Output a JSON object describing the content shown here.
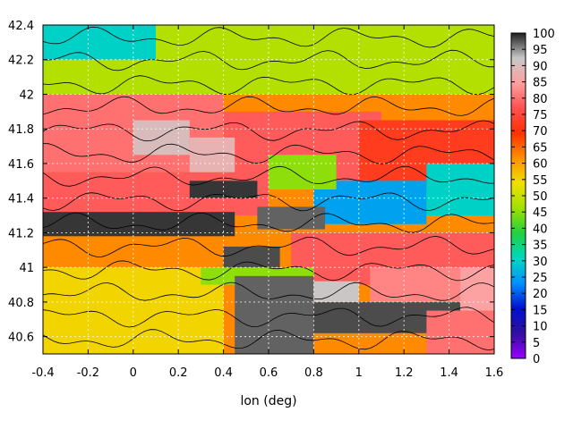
{
  "chart_data": {
    "type": "heatmap",
    "title": "",
    "xlabel": "lon (deg)",
    "ylabel": "",
    "xlim": [
      -0.4,
      1.6
    ],
    "ylim": [
      40.5,
      42.4
    ],
    "x_ticks": [
      "-0.4",
      "-0.2",
      "0",
      "0.2",
      "0.4",
      "0.6",
      "0.8",
      "1",
      "1.2",
      "1.4",
      "1.6"
    ],
    "y_ticks": [
      "40.6",
      "40.8",
      "41",
      "41.2",
      "41.4",
      "41.6",
      "41.8",
      "42",
      "42.2",
      "42.4"
    ],
    "grid": true,
    "contours": true,
    "colorbar": {
      "range": [
        0,
        100
      ],
      "ticks": [
        "100",
        "95",
        "90",
        "85",
        "80",
        "75",
        "70",
        "65",
        "60",
        "55",
        "50",
        "45",
        "40",
        "35",
        "30",
        "25",
        "20",
        "15",
        "10",
        "5",
        "0"
      ],
      "colors": [
        "#9a00ff",
        "#3010a0",
        "#0010d0",
        "#0090ff",
        "#00d8c0",
        "#20d040",
        "#a0e000",
        "#f0e000",
        "#ff9000",
        "#ff3000",
        "#ff5050",
        "#ffa0a0",
        "#c8c8c8",
        "#202020"
      ]
    },
    "regions": [
      {
        "lon": [
          -0.4,
          1.6
        ],
        "lat": [
          40.5,
          42.4
        ],
        "value": 62
      },
      {
        "lon": [
          -0.4,
          0.4
        ],
        "lat": [
          41.55,
          42.05
        ],
        "value": 80
      },
      {
        "lon": [
          0.4,
          1.1
        ],
        "lat": [
          41.45,
          41.9
        ],
        "value": 78
      },
      {
        "lon": [
          1.0,
          1.6
        ],
        "lat": [
          41.45,
          41.85
        ],
        "value": 72
      },
      {
        "lon": [
          0.7,
          1.6
        ],
        "lat": [
          40.9,
          41.2
        ],
        "value": 78
      },
      {
        "lon": [
          -0.4,
          0.6
        ],
        "lat": [
          41.3,
          41.55
        ],
        "value": 78
      },
      {
        "lon": [
          0.8,
          1.3
        ],
        "lat": [
          41.25,
          41.5
        ],
        "value": 25
      },
      {
        "lon": [
          1.3,
          1.6
        ],
        "lat": [
          41.3,
          41.6
        ],
        "value": 30
      },
      {
        "lon": [
          -0.4,
          1.6
        ],
        "lat": [
          42.0,
          42.4
        ],
        "value": 48
      },
      {
        "lon": [
          -0.4,
          0.1
        ],
        "lat": [
          42.2,
          42.4
        ],
        "value": 30
      },
      {
        "lon": [
          0.6,
          0.9
        ],
        "lat": [
          41.45,
          41.65
        ],
        "value": 45
      },
      {
        "lon": [
          -0.4,
          0.4
        ],
        "lat": [
          40.5,
          41.0
        ],
        "value": 55
      },
      {
        "lon": [
          0.3,
          0.8
        ],
        "lat": [
          40.9,
          41.0
        ],
        "value": 45
      },
      {
        "lon": [
          0.0,
          0.25
        ],
        "lat": [
          41.65,
          41.85
        ],
        "value": 90
      },
      {
        "lon": [
          0.25,
          0.45
        ],
        "lat": [
          41.55,
          41.75
        ],
        "value": 88
      },
      {
        "lon": [
          -0.4,
          0.45
        ],
        "lat": [
          41.18,
          41.32
        ],
        "value": 99
      },
      {
        "lon": [
          0.25,
          0.55
        ],
        "lat": [
          41.4,
          41.5
        ],
        "value": 99
      },
      {
        "lon": [
          0.55,
          0.85
        ],
        "lat": [
          41.22,
          41.35
        ],
        "value": 97
      },
      {
        "lon": [
          0.4,
          0.65
        ],
        "lat": [
          41.0,
          41.12
        ],
        "value": 98
      },
      {
        "lon": [
          0.45,
          0.8
        ],
        "lat": [
          40.5,
          40.95
        ],
        "value": 97
      },
      {
        "lon": [
          0.8,
          1.45
        ],
        "lat": [
          40.62,
          40.8
        ],
        "value": 98
      },
      {
        "lon": [
          0.8,
          1.0
        ],
        "lat": [
          40.8,
          40.92
        ],
        "value": 92
      },
      {
        "lon": [
          1.05,
          1.6
        ],
        "lat": [
          40.8,
          41.0
        ],
        "value": 82
      },
      {
        "lon": [
          1.3,
          1.6
        ],
        "lat": [
          40.5,
          40.75
        ],
        "value": 80
      },
      {
        "lon": [
          1.45,
          1.6
        ],
        "lat": [
          40.75,
          41.0
        ],
        "value": 85
      }
    ]
  }
}
